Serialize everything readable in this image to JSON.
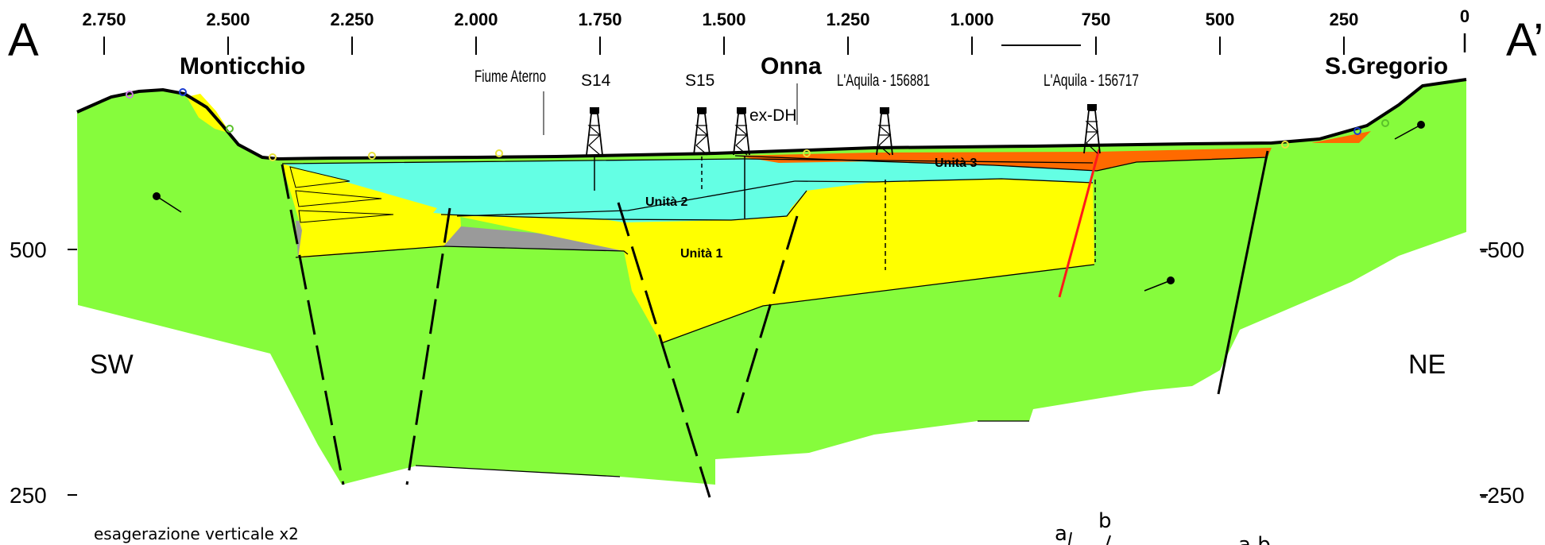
{
  "section": {
    "start_label": "A",
    "end_label": "A’",
    "distance_ticks": [
      "2.750",
      "2.500",
      "2.250",
      "2.000",
      "1.750",
      "1.500",
      "1.250",
      "1.000",
      "750",
      "500",
      "250",
      "0"
    ],
    "elevation_left": [
      "500",
      "250"
    ],
    "elevation_right": [
      "-500",
      "-250"
    ],
    "direction_left": "SW",
    "direction_right": "NE",
    "vertical_exaggeration_note": "esagerazione verticale x2"
  },
  "localities": {
    "monticchio": "Monticchio",
    "onna": "Onna",
    "s_gregorio": "S.Gregorio",
    "fiume_aterno": "Fiume Aterno"
  },
  "boreholes": {
    "s14": "S14",
    "s15": "S15",
    "ex_dh": "ex-DH",
    "laquila_156881": "L'Aquila - 156881",
    "laquila_156717": "L'Aquila - 156717"
  },
  "units": {
    "unit1": "Unità 1",
    "unit2": "Unità 2",
    "unit3": "Unità 3"
  },
  "legend_marks": {
    "a": "a",
    "b": "b",
    "ab": "a b"
  },
  "colors": {
    "bedrock": "#86fc3c",
    "unit1": "#ffff00",
    "unit2": "#64ffe4",
    "unit3": "#ff6a00",
    "gray_unit": "#9a9a9a",
    "fault_red": "#ff1a1a"
  }
}
